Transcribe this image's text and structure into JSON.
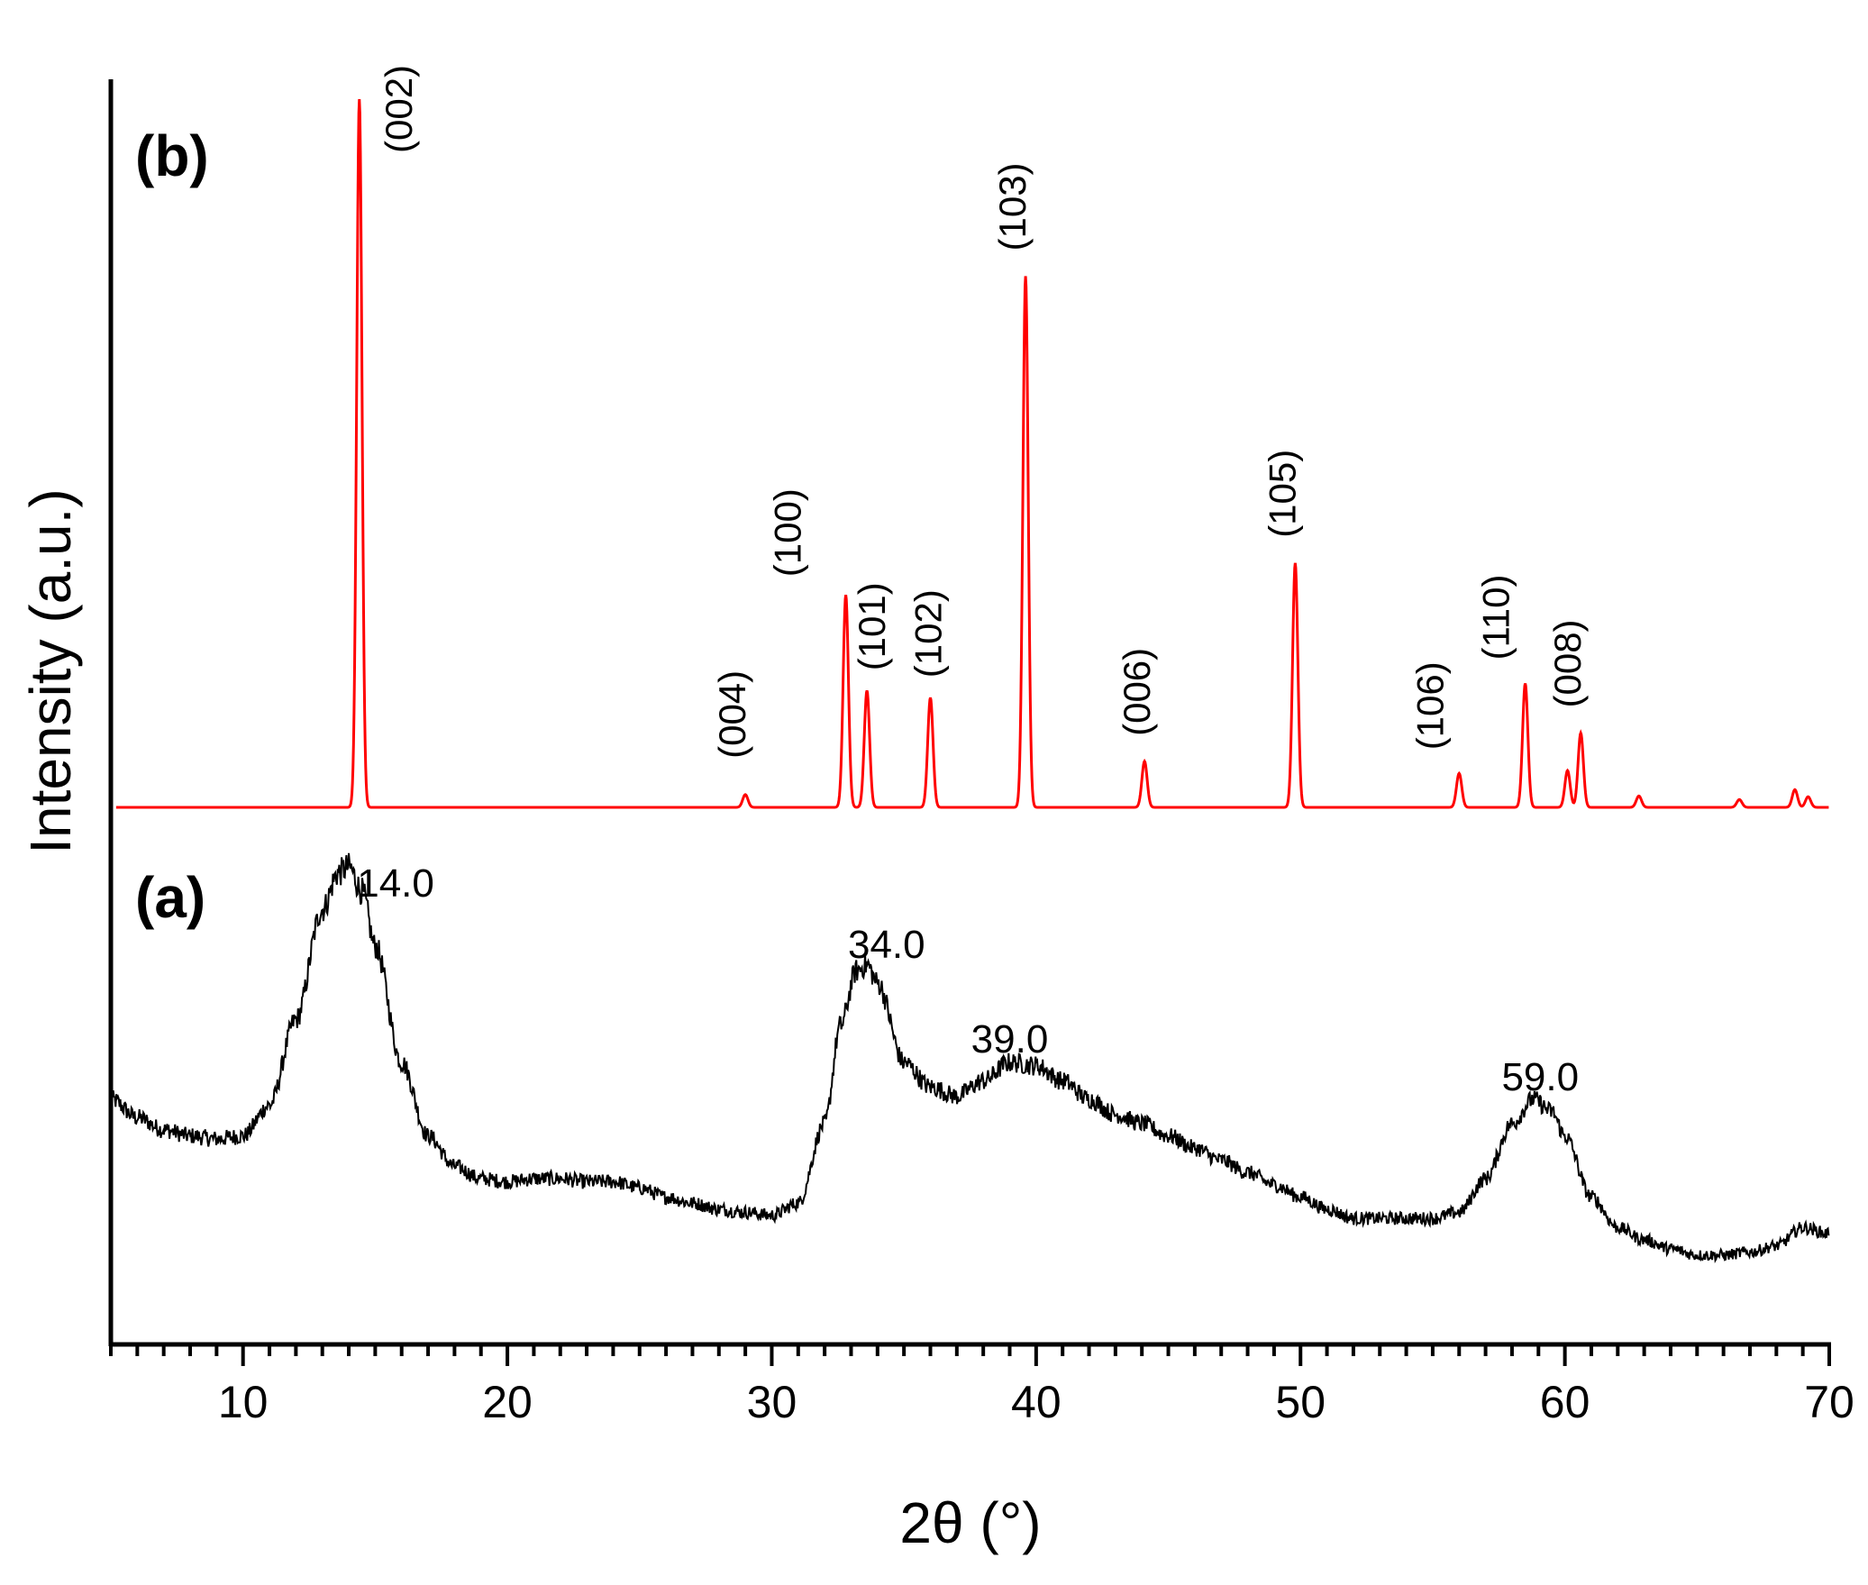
{
  "chart_data": {
    "type": "line",
    "xlabel": "2θ (°)",
    "ylabel": "Intensity (a.u.)",
    "xlim": [
      5,
      70
    ],
    "xticks_major": [
      10,
      20,
      30,
      40,
      50,
      60,
      70
    ],
    "xticks_minor_step": 1,
    "y_ticks_shown": false,
    "grid": false,
    "legend": "none",
    "panels": [
      {
        "label": "(b)",
        "series": [
          {
            "color": "#ff0000",
            "baseline": 0,
            "peaks": [
              {
                "x": 14.4,
                "y": 100,
                "hkl": "(002)"
              },
              {
                "x": 29.0,
                "y": 1.8,
                "hkl": "(004)"
              },
              {
                "x": 32.8,
                "y": 30,
                "hkl": "(100)"
              },
              {
                "x": 33.6,
                "y": 16.5,
                "hkl": "(101)"
              },
              {
                "x": 36.0,
                "y": 15.5,
                "hkl": "(102)"
              },
              {
                "x": 39.6,
                "y": 75,
                "hkl": "(103)"
              },
              {
                "x": 44.1,
                "y": 6.5,
                "hkl": "(006)"
              },
              {
                "x": 49.8,
                "y": 34.5,
                "hkl": "(105)"
              },
              {
                "x": 56.0,
                "y": 4.8,
                "hkl": "(106)"
              },
              {
                "x": 58.5,
                "y": 17.5,
                "hkl": "(110)"
              },
              {
                "x": 60.1,
                "y": 5.2,
                "hkl": ""
              },
              {
                "x": 60.6,
                "y": 10.5,
                "hkl": "(008)"
              },
              {
                "x": 62.8,
                "y": 1.6,
                "hkl": ""
              },
              {
                "x": 66.6,
                "y": 1.1,
                "hkl": ""
              },
              {
                "x": 68.7,
                "y": 2.5,
                "hkl": ""
              },
              {
                "x": 69.2,
                "y": 1.5,
                "hkl": ""
              }
            ]
          }
        ]
      },
      {
        "label": "(a)",
        "series": [
          {
            "color": "#000000",
            "points": [
              [
                5,
                32
              ],
              [
                6,
                29
              ],
              [
                7,
                27
              ],
              [
                8,
                26
              ],
              [
                9,
                25.5
              ],
              [
                10,
                26
              ],
              [
                11,
                31
              ],
              [
                12,
                45
              ],
              [
                13,
                63
              ],
              [
                13.6,
                69
              ],
              [
                14.0,
                70
              ],
              [
                14.5,
                66
              ],
              [
                15,
                57
              ],
              [
                16,
                38
              ],
              [
                17,
                26
              ],
              [
                18,
                21
              ],
              [
                19,
                19
              ],
              [
                20,
                18.5
              ],
              [
                21,
                19
              ],
              [
                22,
                19
              ],
              [
                23,
                18.5
              ],
              [
                24,
                18.5
              ],
              [
                25,
                17.5
              ],
              [
                26,
                16
              ],
              [
                27,
                15
              ],
              [
                28,
                14
              ],
              [
                29,
                13.5
              ],
              [
                30,
                13
              ],
              [
                31,
                15
              ],
              [
                32,
                28
              ],
              [
                32.6,
                44
              ],
              [
                33.2,
                53
              ],
              [
                33.6,
                54
              ],
              [
                34.0,
                51
              ],
              [
                35,
                38
              ],
              [
                36,
                34
              ],
              [
                37,
                32.5
              ],
              [
                38,
                35
              ],
              [
                39,
                38
              ],
              [
                40,
                37.5
              ],
              [
                41,
                35
              ],
              [
                42,
                32
              ],
              [
                43,
                29.5
              ],
              [
                44,
                28
              ],
              [
                45,
                26
              ],
              [
                46,
                24
              ],
              [
                47,
                22
              ],
              [
                48,
                20
              ],
              [
                49,
                18
              ],
              [
                50,
                16
              ],
              [
                51,
                14
              ],
              [
                52,
                12.5
              ],
              [
                53,
                12.5
              ],
              [
                54,
                12.5
              ],
              [
                55,
                12.5
              ],
              [
                56,
                13.5
              ],
              [
                57,
                19
              ],
              [
                58,
                28
              ],
              [
                58.8,
                32
              ],
              [
                59.5,
                30
              ],
              [
                60,
                26
              ],
              [
                61,
                16
              ],
              [
                62,
                11
              ],
              [
                63,
                9
              ],
              [
                64,
                7.5
              ],
              [
                65,
                6.5
              ],
              [
                66,
                6.5
              ],
              [
                67,
                7
              ],
              [
                68,
                8
              ],
              [
                69,
                11
              ],
              [
                70,
                10
              ]
            ]
          }
        ],
        "annotations": [
          {
            "x": 14.0,
            "text": "14.0"
          },
          {
            "x": 34.0,
            "text": "34.0"
          },
          {
            "x": 39.0,
            "text": "39.0"
          },
          {
            "x": 59.0,
            "text": "59.0"
          }
        ]
      }
    ]
  }
}
